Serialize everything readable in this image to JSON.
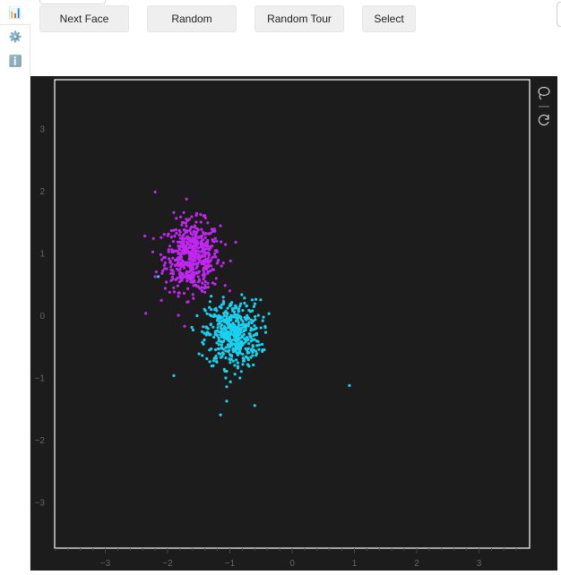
{
  "sidebar": {
    "items": [
      {
        "icon": "bar-chart-icon",
        "glyph": "📊"
      },
      {
        "icon": "gear-icon",
        "glyph": "⚙️"
      },
      {
        "icon": "info-icon",
        "glyph": "ℹ️"
      }
    ]
  },
  "toolbar": {
    "next_face_label": "Next Face",
    "random_label": "Random",
    "random_tour_label": "Random Tour",
    "select_label": "Select"
  },
  "colors": {
    "plot_background": "#1c1c1c",
    "frame": "#ffffff",
    "axis_text": "#666666",
    "cluster_a": "#c027f0",
    "cluster_b": "#1ad0f0"
  },
  "plot_tools": [
    "lasso-icon",
    "reset-icon"
  ],
  "chart_data": {
    "type": "scatter",
    "title": "",
    "xlabel": "",
    "ylabel": "",
    "xlim": [
      -3.8,
      3.8
    ],
    "ylim": [
      -3.8,
      3.8
    ],
    "x_ticks": [
      -3,
      -2,
      -1,
      0,
      1,
      2,
      3
    ],
    "y_ticks": [
      -3,
      -2,
      -1,
      0,
      1,
      2,
      3
    ],
    "x_tick_labels": [
      "−3",
      "−2",
      "−1",
      "0",
      "1",
      "2",
      "3"
    ],
    "y_tick_labels": [
      "−3",
      "−2",
      "−1",
      "0",
      "1",
      "2",
      "3"
    ],
    "grid": false,
    "series": [
      {
        "color": "#c027f0",
        "center": [
          -1.6,
          0.95
        ],
        "spread": [
          0.22,
          0.28
        ],
        "n": 550,
        "outliers": [
          [
            -2.2,
            1.98
          ],
          [
            -2.35,
            0.03
          ],
          [
            -2.2,
            0.62
          ],
          [
            -1.9,
            1.65
          ],
          [
            -1.45,
            0.4
          ]
        ]
      },
      {
        "color": "#1ad0f0",
        "center": [
          -0.95,
          -0.3
        ],
        "spread": [
          0.22,
          0.27
        ],
        "n": 500,
        "outliers": [
          [
            0.92,
            -1.13
          ],
          [
            -1.15,
            -1.6
          ],
          [
            -1.9,
            -0.97
          ],
          [
            -0.6,
            -1.45
          ],
          [
            -1.05,
            -1.38
          ],
          [
            -2.15,
            0.62
          ]
        ]
      }
    ]
  }
}
